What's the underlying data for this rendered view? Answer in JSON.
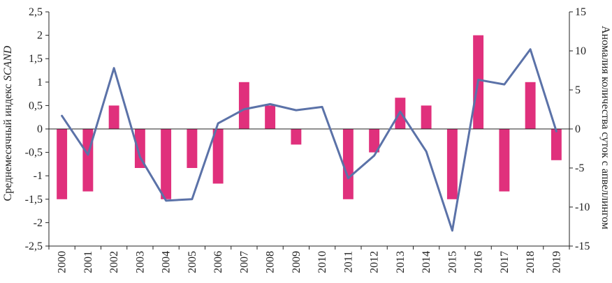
{
  "chart_data": {
    "type": "bar+line",
    "title": "",
    "categories": [
      "2000",
      "2001",
      "2002",
      "2003",
      "2004",
      "2005",
      "2006",
      "2007",
      "2008",
      "2009",
      "2010",
      "2011",
      "2012",
      "2013",
      "2014",
      "2015",
      "2016",
      "2017",
      "2018",
      "2019"
    ],
    "left_axis": {
      "label_prefix": "Среднемесячный индекс ",
      "label_italic": "SCAND",
      "ylim": [
        -2.5,
        2.5
      ],
      "ticks": [
        2.5,
        2,
        1.5,
        1,
        0.5,
        0,
        -0.5,
        -1,
        -1.5,
        -2,
        -2.5
      ],
      "tick_labels": [
        "2,5",
        "2",
        "1,5",
        "1",
        "0,5",
        "0",
        "-0,5",
        "-1",
        "-1,5",
        "-2",
        "-2,5"
      ]
    },
    "right_axis": {
      "label": "Аномалия  количества суток с апвеллингом",
      "ylim": [
        -15,
        15
      ],
      "ticks": [
        15,
        10,
        5,
        0,
        -5,
        -10,
        -15
      ],
      "tick_labels": [
        "15",
        "10",
        "5",
        "0",
        "-5",
        "-10",
        "-15"
      ]
    },
    "series": [
      {
        "type": "line",
        "axis": "left",
        "color": "#5b72a8",
        "values": [
          0.28,
          -0.55,
          1.3,
          -0.6,
          -1.53,
          -1.5,
          0.12,
          0.42,
          0.53,
          0.4,
          0.47,
          -1.05,
          -0.57,
          0.37,
          -0.48,
          -2.17,
          1.05,
          0.95,
          1.7,
          -0.05
        ]
      },
      {
        "type": "bar",
        "axis": "right",
        "color": "#e0307c",
        "values": [
          -9,
          -8,
          3,
          -5,
          -9,
          -5,
          -7,
          6,
          3,
          -2,
          0,
          -9,
          -3,
          4,
          3,
          -9,
          12,
          -8,
          6,
          -4
        ]
      }
    ]
  }
}
